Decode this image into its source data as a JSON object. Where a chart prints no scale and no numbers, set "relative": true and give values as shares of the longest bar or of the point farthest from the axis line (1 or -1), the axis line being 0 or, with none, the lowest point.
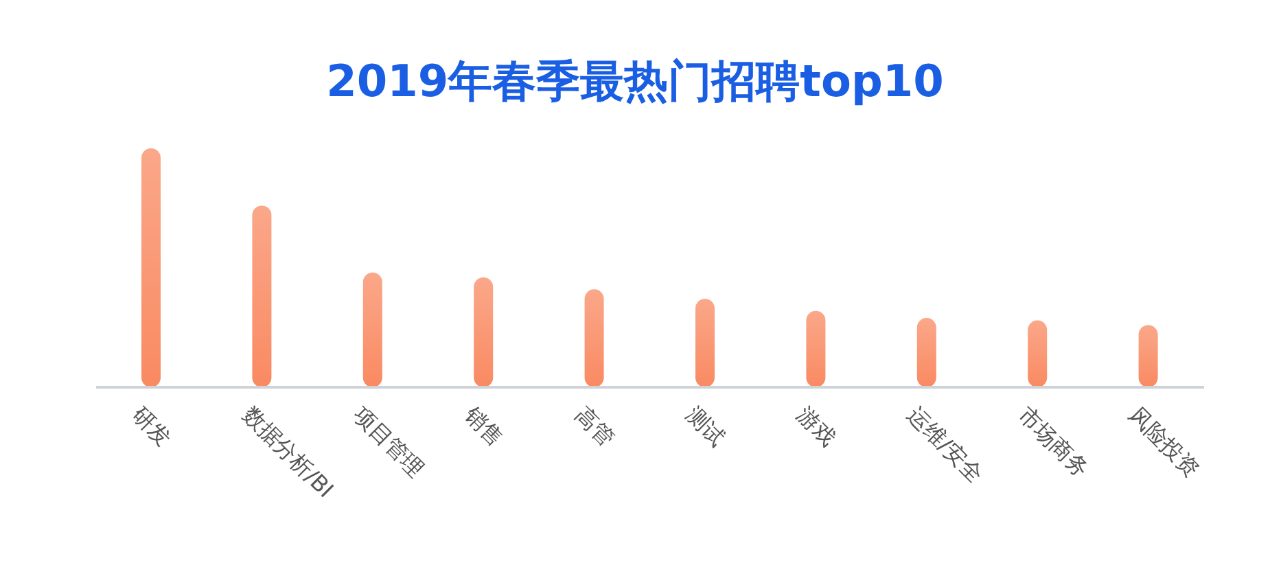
{
  "chart_data": {
    "type": "bar",
    "title": "2019年春季最热门招聘top10",
    "relative": true,
    "categories": [
      "研发",
      "数据分析/BI",
      "项目管理",
      "销售",
      "高管",
      "测试",
      "游戏",
      "运维/安全",
      "市场商务",
      "风险投资"
    ],
    "values": [
      1,
      0.76,
      0.48,
      0.46,
      0.41,
      0.37,
      0.32,
      0.29,
      0.28,
      0.26
    ],
    "color": "#f98a62",
    "grid": false,
    "legend": false
  }
}
